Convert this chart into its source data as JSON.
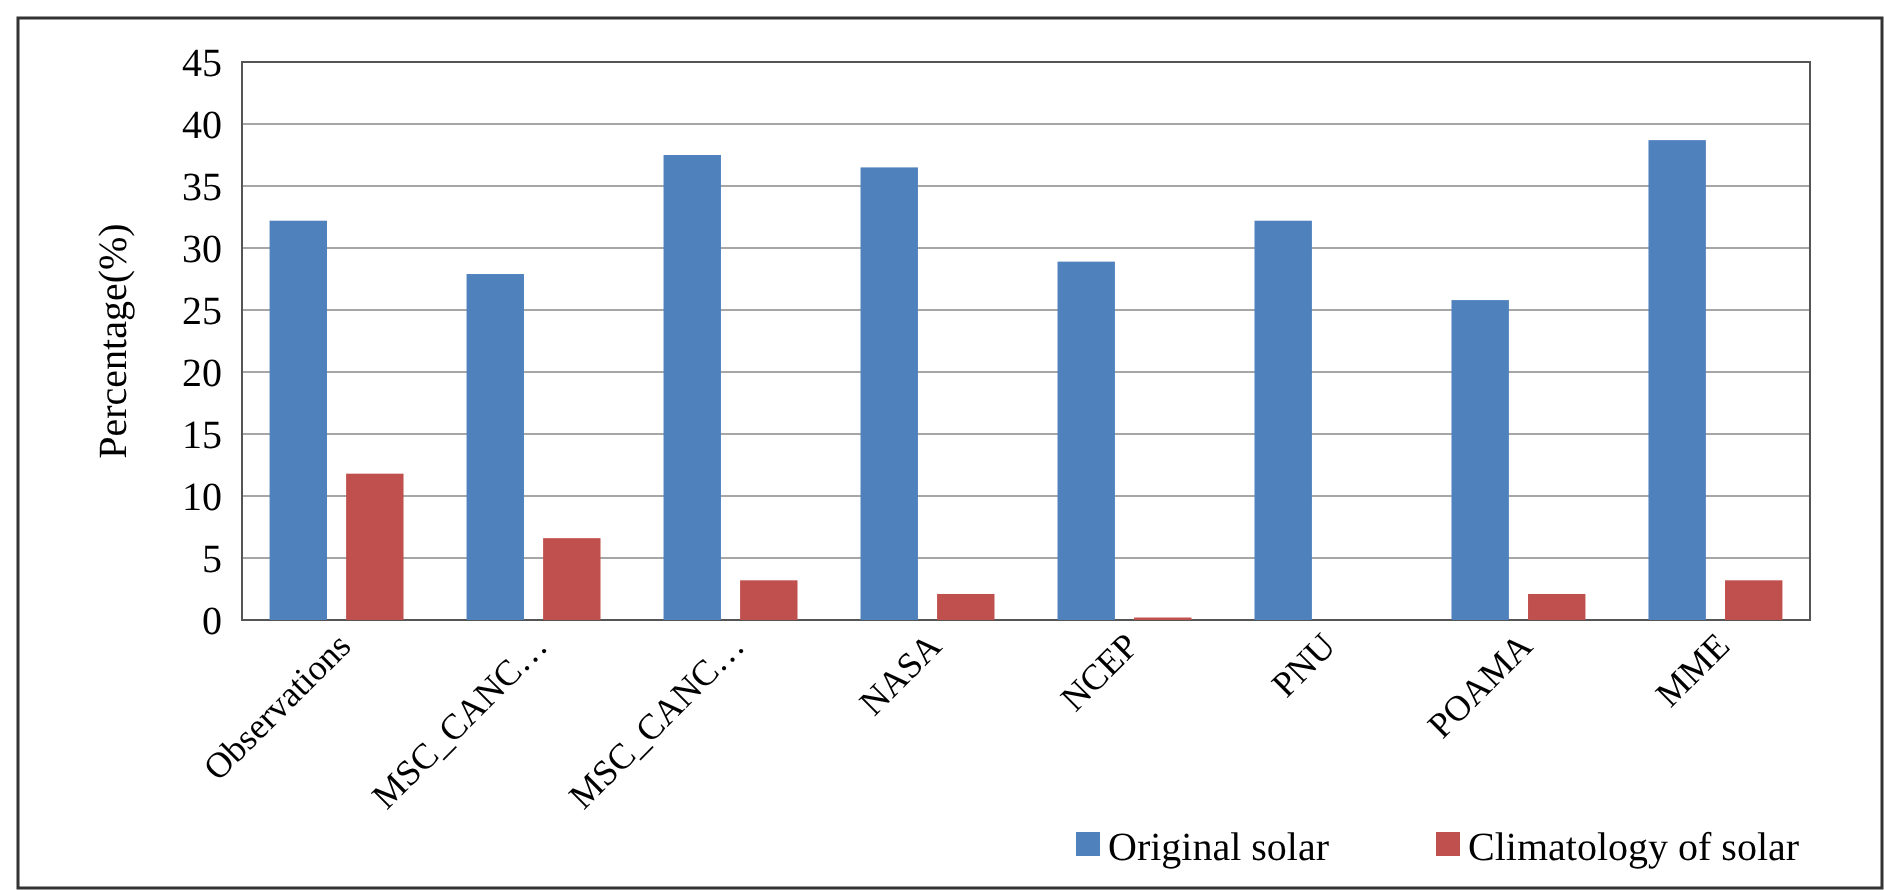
{
  "chart_data": {
    "type": "bar",
    "ylabel": "Percentage(%)",
    "categories": [
      "Observations",
      "MSC_CANC…",
      "MSC_CANC…",
      "NASA",
      "NCEP",
      "PNU",
      "POAMA",
      "MME"
    ],
    "series": [
      {
        "name": "Original solar",
        "color": "#4f81bd",
        "values": [
          32.2,
          27.9,
          37.5,
          36.5,
          28.9,
          32.2,
          25.8,
          38.7
        ]
      },
      {
        "name": "Climatology of solar",
        "color": "#c0504d",
        "values": [
          11.8,
          6.6,
          3.2,
          2.1,
          0.2,
          0,
          2.1,
          3.2
        ]
      }
    ],
    "ylim": [
      0,
      45
    ],
    "yticks": [
      0,
      5,
      10,
      15,
      20,
      25,
      30,
      35,
      40,
      45
    ],
    "grid": "y",
    "legend": "bottom"
  }
}
